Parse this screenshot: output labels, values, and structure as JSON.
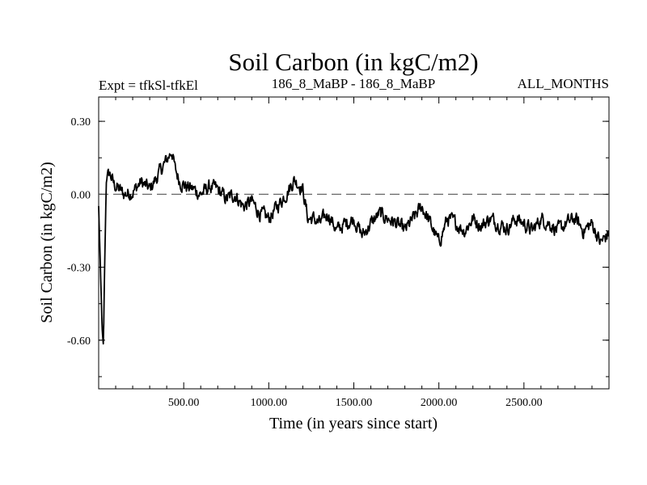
{
  "chart_data": {
    "type": "line",
    "title": "Soil Carbon (in kgC/m2)",
    "expt_label": "Expt = tfkSl-tfkEl",
    "subtitle": "186_8_MaBP - 186_8_MaBP",
    "months_label": "ALL_MONTHS",
    "xlabel": "Time (in years since start)",
    "ylabel": "Soil Carbon (in kgC/m2)",
    "xlim": [
      0,
      3000
    ],
    "ylim": [
      -0.8,
      0.4
    ],
    "xticks": [
      500,
      1000,
      1500,
      2000,
      2500
    ],
    "xtick_labels": [
      "500.00",
      "1000.00",
      "1500.00",
      "2000.00",
      "2500.00"
    ],
    "yticks": [
      0.3,
      0.0,
      -0.3,
      -0.6
    ],
    "ytick_labels": [
      "0.30",
      "0.00",
      "-0.30",
      "-0.60"
    ],
    "reference_line": {
      "y": 0.0,
      "style": "dashed"
    },
    "series": [
      {
        "name": "Soil Carbon",
        "color": "#000000",
        "x": [
          0,
          10,
          20,
          28,
          35,
          45,
          55,
          70,
          90,
          120,
          150,
          200,
          250,
          300,
          350,
          400,
          430,
          450,
          480,
          520,
          560,
          600,
          650,
          700,
          750,
          800,
          850,
          900,
          950,
          1000,
          1050,
          1100,
          1150,
          1180,
          1200,
          1230,
          1260,
          1300,
          1350,
          1400,
          1450,
          1500,
          1550,
          1600,
          1650,
          1700,
          1750,
          1800,
          1850,
          1900,
          1950,
          2000,
          2050,
          2100,
          2150,
          2200,
          2250,
          2300,
          2350,
          2400,
          2450,
          2500,
          2550,
          2600,
          2650,
          2700,
          2750,
          2800,
          2850,
          2900,
          2950,
          3000
        ],
        "y": [
          -0.05,
          -0.3,
          -0.55,
          -0.63,
          -0.3,
          0.05,
          0.1,
          0.08,
          0.04,
          0.02,
          0.0,
          0.01,
          0.05,
          0.02,
          0.08,
          0.14,
          0.18,
          0.1,
          0.05,
          0.03,
          0.02,
          0.0,
          0.03,
          0.02,
          -0.02,
          0.0,
          -0.05,
          -0.03,
          -0.08,
          -0.1,
          -0.05,
          0.0,
          0.06,
          0.04,
          0.02,
          -0.1,
          -0.1,
          -0.12,
          -0.08,
          -0.15,
          -0.12,
          -0.1,
          -0.17,
          -0.12,
          -0.08,
          -0.1,
          -0.12,
          -0.15,
          -0.1,
          -0.05,
          -0.12,
          -0.2,
          -0.1,
          -0.12,
          -0.15,
          -0.1,
          -0.13,
          -0.1,
          -0.12,
          -0.14,
          -0.1,
          -0.12,
          -0.15,
          -0.1,
          -0.12,
          -0.15,
          -0.12,
          -0.1,
          -0.15,
          -0.12,
          -0.2,
          -0.16
        ]
      }
    ]
  }
}
